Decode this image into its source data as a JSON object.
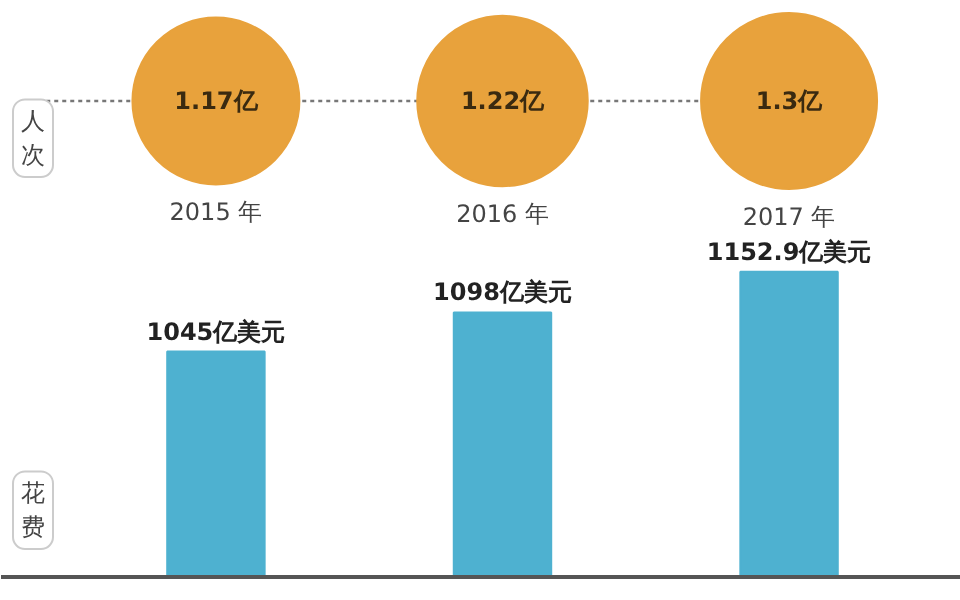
{
  "chart_data": [
    {
      "type": "other",
      "ylabel": "人次",
      "categories": [
        "2015 年",
        "2016 年",
        "2017 年"
      ],
      "values": [
        1.17,
        1.22,
        1.3
      ],
      "value_labels": [
        "1.17亿",
        "1.22亿",
        "1.3亿"
      ],
      "color": "#e8a23c"
    },
    {
      "type": "bar",
      "ylabel": "花费",
      "categories": [
        null,
        null,
        null
      ],
      "values": [
        1045,
        1098,
        1152.9
      ],
      "value_labels": [
        "1045亿美元",
        "1098亿美元",
        "1152.9亿美元"
      ],
      "color": "#4eb1d0",
      "ylim": [
        740,
        1200
      ],
      "tick_labels": false
    }
  ]
}
